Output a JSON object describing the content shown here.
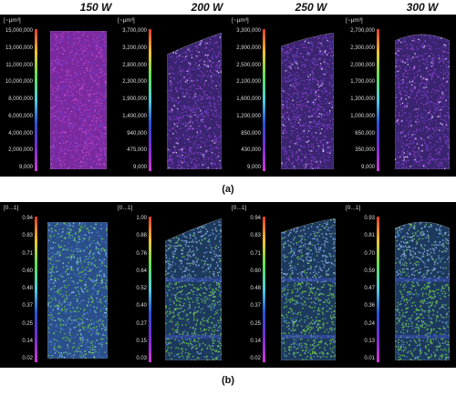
{
  "headers": [
    "150 W",
    "200 W",
    "250 W",
    "300 W"
  ],
  "row_a": {
    "label": "(a)",
    "panels": [
      {
        "unit": "[~µm³]",
        "ticks": [
          "15,000,000",
          "13,000,000",
          "11,000,000",
          "10,000,000",
          "8,000,000",
          "6,000,000",
          "4,000,000",
          "2,000,000",
          "9,000"
        ]
      },
      {
        "unit": "[~µm³]",
        "ticks": [
          "3,700,000",
          "3,200,000",
          "2,800,000",
          "2,300,000",
          "1,900,000",
          "1,400,000",
          "940,000",
          "475,000",
          "9,000"
        ]
      },
      {
        "unit": "[~µm³]",
        "ticks": [
          "3,300,000",
          "2,900,000",
          "2,500,000",
          "2,100,000",
          "1,600,000",
          "1,200,000",
          "850,000",
          "430,000",
          "9,000"
        ]
      },
      {
        "unit": "[~µm³]",
        "ticks": [
          "2,700,000",
          "2,300,000",
          "2,000,000",
          "1,700,000",
          "1,300,000",
          "1,000,000",
          "650,000",
          "350,000",
          "9,000"
        ]
      }
    ]
  },
  "row_b": {
    "label": "(b)",
    "panels": [
      {
        "unit": "[0...1]",
        "ticks": [
          "0.94",
          "0.83",
          "0.71",
          "0.60",
          "0.48",
          "0.37",
          "0.25",
          "0.14",
          "0.02"
        ]
      },
      {
        "unit": "[0...1]",
        "ticks": [
          "1.00",
          "0.88",
          "0.76",
          "0.64",
          "0.52",
          "0.40",
          "0.27",
          "0.15",
          "0.03"
        ]
      },
      {
        "unit": "[0...1]",
        "ticks": [
          "0.94",
          "0.83",
          "0.71",
          "0.60",
          "0.48",
          "0.37",
          "0.25",
          "0.14",
          "0.02"
        ]
      },
      {
        "unit": "[0...1]",
        "ticks": [
          "0.93",
          "0.81",
          "0.70",
          "0.59",
          "0.47",
          "0.36",
          "0.24",
          "0.13",
          "0.01"
        ]
      }
    ]
  },
  "colors": {
    "background": "#000000",
    "colorbar": [
      "#e53a2a",
      "#f2c531",
      "#5fe05a",
      "#52cfe0",
      "#2b4ed8",
      "#7a2dd6",
      "#d23ad8"
    ],
    "pore_purple": "#8a2fb8",
    "porosity_blue": "#3f6bc8",
    "porosity_green": "#6cc84a"
  }
}
